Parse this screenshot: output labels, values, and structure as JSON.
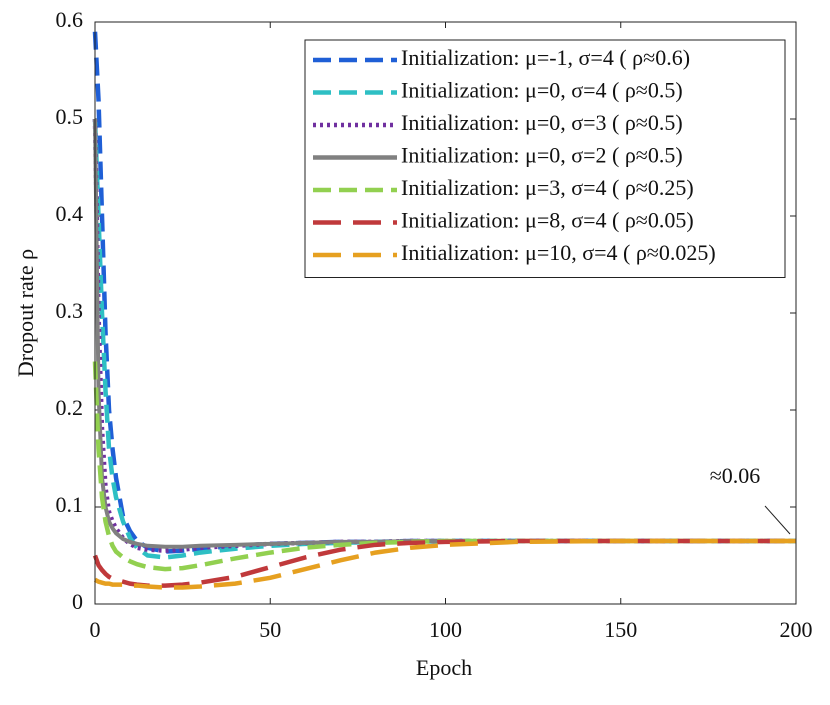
{
  "chart_data": {
    "type": "line",
    "x_label": "Epoch",
    "y_label": "Dropout rate ρ",
    "annotation": "≈0.06",
    "x": [
      0,
      1,
      2,
      3,
      4,
      5,
      6,
      8,
      10,
      12,
      15,
      20,
      25,
      30,
      40,
      50,
      60,
      70,
      80,
      90,
      100,
      120,
      150,
      200
    ],
    "series": [
      {
        "name": "Initialization: μ=-1, σ=4 ( ρ≈0.6)",
        "color": "#1f5fd6",
        "style": "dashed",
        "values": [
          0.59,
          0.52,
          0.4,
          0.28,
          0.2,
          0.16,
          0.13,
          0.09,
          0.075,
          0.065,
          0.058,
          0.054,
          0.055,
          0.057,
          0.06,
          0.062,
          0.063,
          0.064,
          0.064,
          0.065,
          0.065,
          0.065,
          0.065,
          0.065
        ]
      },
      {
        "name": "Initialization: μ=0, σ=4 ( ρ≈0.5)",
        "color": "#2ebfc4",
        "style": "dashed",
        "values": [
          0.5,
          0.4,
          0.3,
          0.22,
          0.16,
          0.13,
          0.11,
          0.085,
          0.068,
          0.058,
          0.05,
          0.048,
          0.05,
          0.053,
          0.057,
          0.06,
          0.062,
          0.063,
          0.064,
          0.064,
          0.065,
          0.065,
          0.065,
          0.065
        ]
      },
      {
        "name": "Initialization: μ=0, σ=3 ( ρ≈0.5)",
        "color": "#7030a0",
        "style": "dotted",
        "values": [
          0.5,
          0.3,
          0.18,
          0.12,
          0.095,
          0.085,
          0.078,
          0.068,
          0.062,
          0.058,
          0.056,
          0.055,
          0.056,
          0.058,
          0.06,
          0.062,
          0.063,
          0.064,
          0.064,
          0.065,
          0.065,
          0.065,
          0.065,
          0.065
        ]
      },
      {
        "name": "Initialization: μ=0, σ=2 ( ρ≈0.5)",
        "color": "#808080",
        "style": "solid",
        "values": [
          0.5,
          0.22,
          0.13,
          0.1,
          0.085,
          0.078,
          0.073,
          0.067,
          0.064,
          0.062,
          0.06,
          0.059,
          0.059,
          0.06,
          0.061,
          0.062,
          0.063,
          0.064,
          0.064,
          0.065,
          0.065,
          0.065,
          0.065,
          0.065
        ]
      },
      {
        "name": "Initialization: μ=3, σ=4 ( ρ≈0.25)",
        "color": "#92d050",
        "style": "dashed",
        "values": [
          0.25,
          0.16,
          0.11,
          0.085,
          0.07,
          0.06,
          0.054,
          0.048,
          0.044,
          0.041,
          0.038,
          0.036,
          0.037,
          0.04,
          0.047,
          0.053,
          0.058,
          0.061,
          0.063,
          0.064,
          0.065,
          0.065,
          0.065,
          0.065
        ]
      },
      {
        "name": "Initialization: μ=8, σ=4 ( ρ≈0.05)",
        "color": "#c0393b",
        "style": "longdash",
        "values": [
          0.05,
          0.04,
          0.035,
          0.031,
          0.028,
          0.026,
          0.025,
          0.023,
          0.021,
          0.02,
          0.019,
          0.019,
          0.02,
          0.022,
          0.028,
          0.038,
          0.048,
          0.056,
          0.061,
          0.063,
          0.064,
          0.065,
          0.065,
          0.065
        ]
      },
      {
        "name": "Initialization: μ=10, σ=4 ( ρ≈0.025)",
        "color": "#e6a020",
        "style": "longdash",
        "values": [
          0.025,
          0.023,
          0.022,
          0.021,
          0.021,
          0.02,
          0.02,
          0.02,
          0.019,
          0.019,
          0.018,
          0.017,
          0.017,
          0.018,
          0.021,
          0.027,
          0.036,
          0.045,
          0.053,
          0.058,
          0.061,
          0.064,
          0.065,
          0.065
        ]
      }
    ],
    "xlim": [
      0,
      200
    ],
    "xticks": [
      0,
      50,
      100,
      150,
      200
    ],
    "ylim": [
      0,
      0.6
    ],
    "yticks": [
      0,
      0.1,
      0.2,
      0.3,
      0.4,
      0.5,
      0.6
    ],
    "grid": false,
    "legend": "upper right"
  }
}
